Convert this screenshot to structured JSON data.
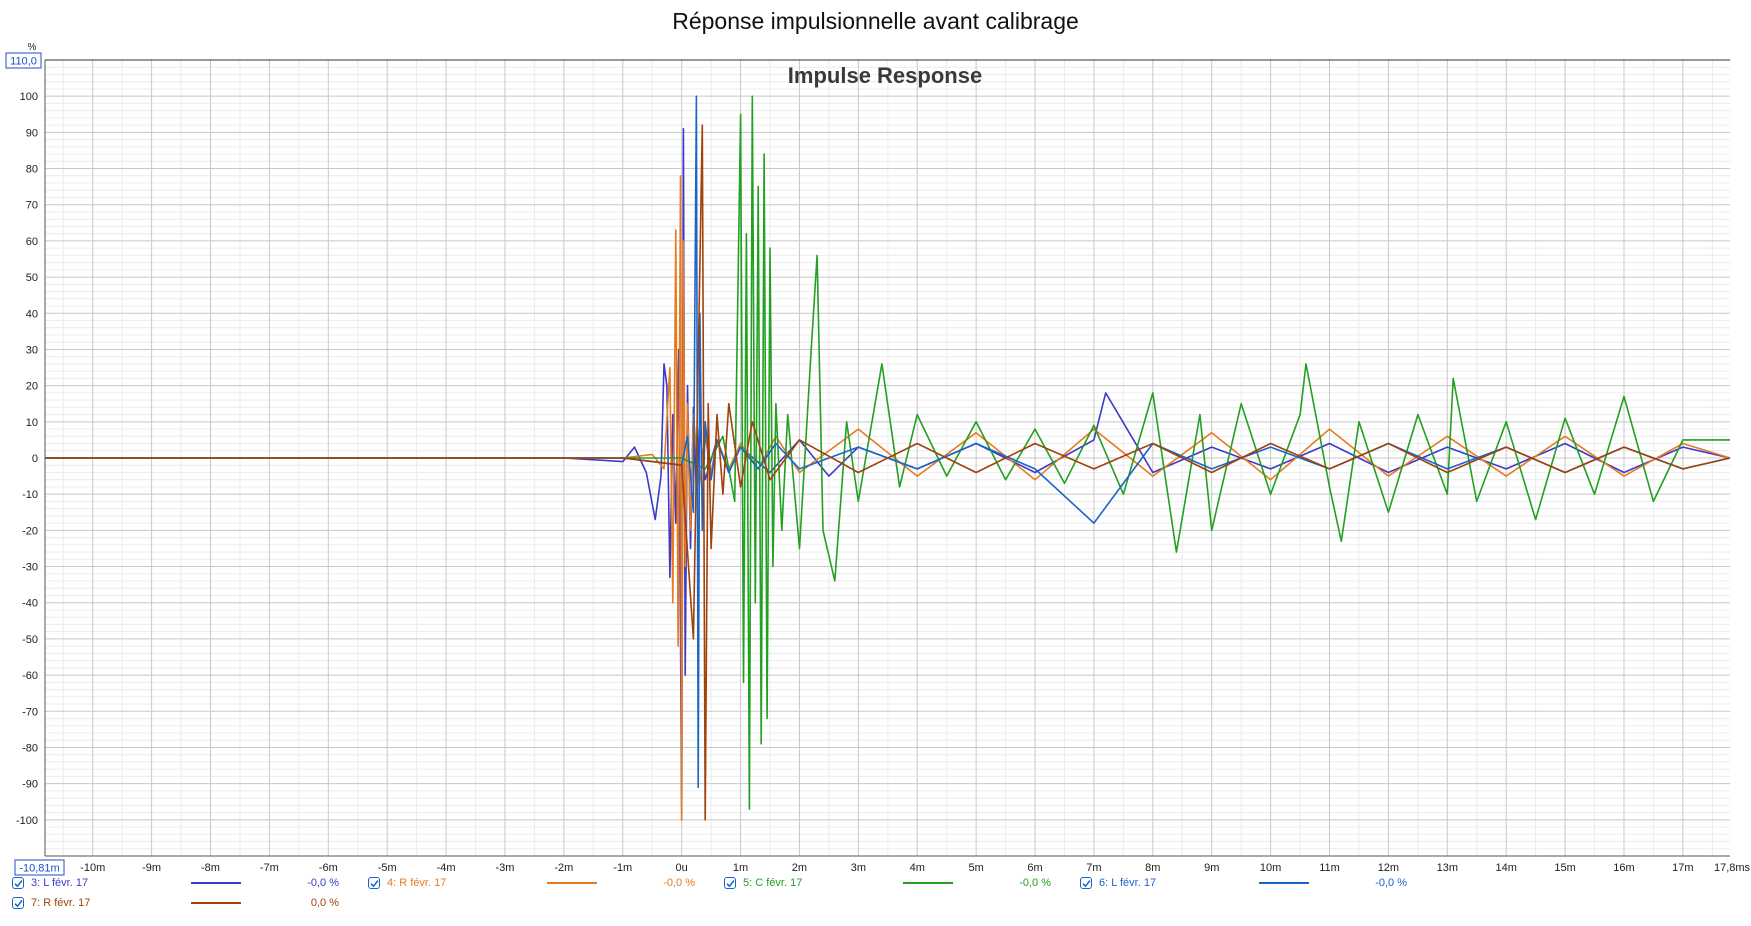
{
  "window": {
    "title": "Réponse impulsionnelle avant calibrage"
  },
  "chart_data": {
    "type": "line",
    "title": "Impulse Response",
    "xlabel": "",
    "ylabel": "",
    "y_unit": "%",
    "x_unit": "ms",
    "ylim": [
      -110,
      110
    ],
    "xlim": [
      -10.81,
      17.8
    ],
    "y_ticks": [
      100,
      90,
      80,
      70,
      60,
      50,
      40,
      30,
      20,
      10,
      0,
      -10,
      -20,
      -30,
      -40,
      -50,
      -60,
      -70,
      -80,
      -90,
      -100
    ],
    "x_ticks": [
      {
        "v": -10,
        "label": "-10m"
      },
      {
        "v": -9,
        "label": "-9m"
      },
      {
        "v": -8,
        "label": "-8m"
      },
      {
        "v": -7,
        "label": "-7m"
      },
      {
        "v": -6,
        "label": "-6m"
      },
      {
        "v": -5,
        "label": "-5m"
      },
      {
        "v": -4,
        "label": "-4m"
      },
      {
        "v": -3,
        "label": "-3m"
      },
      {
        "v": -2,
        "label": "-2m"
      },
      {
        "v": -1,
        "label": "-1m"
      },
      {
        "v": 0,
        "label": "0u"
      },
      {
        "v": 1,
        "label": "1m"
      },
      {
        "v": 2,
        "label": "2m"
      },
      {
        "v": 3,
        "label": "3m"
      },
      {
        "v": 4,
        "label": "4m"
      },
      {
        "v": 5,
        "label": "5m"
      },
      {
        "v": 6,
        "label": "6m"
      },
      {
        "v": 7,
        "label": "7m"
      },
      {
        "v": 8,
        "label": "8m"
      },
      {
        "v": 9,
        "label": "9m"
      },
      {
        "v": 10,
        "label": "10m"
      },
      {
        "v": 11,
        "label": "11m"
      },
      {
        "v": 12,
        "label": "12m"
      },
      {
        "v": 13,
        "label": "13m"
      },
      {
        "v": 14,
        "label": "14m"
      },
      {
        "v": 15,
        "label": "15m"
      },
      {
        "v": 16,
        "label": "16m"
      },
      {
        "v": 17,
        "label": "17m"
      }
    ],
    "y_top_box": "110,0",
    "x_left_box": "-10,81m",
    "x_right_label": "17,8ms",
    "grid": true,
    "legend_position": "bottom",
    "series": [
      {
        "name": "3: L févr. 17",
        "color": "#3b3bc8",
        "value": "-0,0 %",
        "checked": true,
        "x": [
          -10.81,
          -2.0,
          -1.0,
          -0.8,
          -0.6,
          -0.45,
          -0.35,
          -0.3,
          -0.25,
          -0.2,
          -0.15,
          -0.1,
          -0.05,
          0.0,
          0.03,
          0.06,
          0.1,
          0.15,
          0.2,
          0.25,
          0.3,
          0.4,
          0.6,
          0.8,
          1.0,
          1.5,
          2.0,
          2.5,
          3.0,
          4.0,
          5.0,
          6.0,
          7.0,
          7.2,
          8.0,
          9.0,
          10.0,
          11.0,
          12.0,
          13.0,
          14.0,
          15.0,
          16.0,
          17.0,
          17.8
        ],
        "y": [
          0,
          0,
          -1,
          3,
          -4,
          -17,
          -5,
          26,
          20,
          -33,
          12,
          -18,
          30,
          -100,
          91,
          -60,
          20,
          -25,
          14,
          -10,
          8,
          -6,
          5,
          -4,
          3,
          -4,
          5,
          -5,
          3,
          -3,
          4,
          -4,
          5,
          18,
          -4,
          3,
          -3,
          4,
          -4,
          3,
          -3,
          4,
          -4,
          3,
          0
        ]
      },
      {
        "name": "4: R févr. 17",
        "color": "#e87a1f",
        "value": "-0,0 %",
        "checked": true,
        "x": [
          -10.81,
          -2.0,
          -1.0,
          -0.5,
          -0.3,
          -0.2,
          -0.15,
          -0.1,
          -0.06,
          -0.02,
          0.0,
          0.03,
          0.06,
          0.1,
          0.15,
          0.2,
          0.3,
          0.4,
          0.5,
          0.6,
          0.8,
          1.0,
          1.3,
          1.6,
          2.0,
          3.0,
          4.0,
          5.0,
          6.0,
          7.0,
          8.0,
          9.0,
          10.0,
          11.0,
          12.0,
          13.0,
          14.0,
          15.0,
          16.0,
          17.0,
          17.8
        ],
        "y": [
          0,
          0,
          0,
          1,
          -3,
          25,
          -40,
          63,
          -52,
          78,
          -100,
          60,
          -30,
          15,
          -20,
          12,
          -8,
          6,
          -4,
          5,
          -3,
          4,
          -3,
          6,
          -4,
          8,
          -5,
          7,
          -6,
          8,
          -5,
          7,
          -6,
          8,
          -5,
          6,
          -5,
          6,
          -5,
          4,
          0
        ]
      },
      {
        "name": "5: C févr. 17",
        "color": "#22a022",
        "value": "-0,0 %",
        "checked": true,
        "x": [
          -10.81,
          -1.0,
          0.0,
          0.4,
          0.7,
          0.9,
          1.0,
          1.05,
          1.1,
          1.15,
          1.2,
          1.25,
          1.3,
          1.35,
          1.4,
          1.45,
          1.5,
          1.55,
          1.6,
          1.7,
          1.8,
          2.0,
          2.2,
          2.3,
          2.4,
          2.6,
          2.8,
          3.0,
          3.4,
          3.7,
          4.0,
          4.5,
          5.0,
          5.5,
          6.0,
          6.5,
          7.0,
          7.5,
          8.0,
          8.4,
          8.8,
          9.0,
          9.5,
          10.0,
          10.5,
          10.6,
          11.0,
          11.2,
          11.5,
          12.0,
          12.5,
          13.0,
          13.1,
          13.5,
          14.0,
          14.5,
          15.0,
          15.5,
          16.0,
          16.5,
          17.0,
          17.8
        ],
        "y": [
          0,
          0,
          0,
          -3,
          6,
          -12,
          95,
          -62,
          62,
          -97,
          100,
          -40,
          75,
          -79,
          84,
          -72,
          58,
          -30,
          15,
          -20,
          12,
          -25,
          30,
          56,
          -20,
          -34,
          10,
          -12,
          26,
          -8,
          12,
          -5,
          10,
          -6,
          8,
          -7,
          9,
          -10,
          18,
          -26,
          12,
          -20,
          15,
          -10,
          12,
          26,
          -8,
          -23,
          10,
          -15,
          12,
          -10,
          22,
          -12,
          10,
          -17,
          11,
          -10,
          17,
          -12,
          5,
          5
        ]
      },
      {
        "name": "6: L févr. 17",
        "color": "#1a66c8",
        "value": "-0,0 %",
        "checked": true,
        "x": [
          -10.81,
          -2.0,
          -1.0,
          0.0,
          0.1,
          0.2,
          0.25,
          0.28,
          0.31,
          0.35,
          0.4,
          0.5,
          0.6,
          0.8,
          1.0,
          1.3,
          1.6,
          2.0,
          3.0,
          4.0,
          5.0,
          6.0,
          7.0,
          8.0,
          9.0,
          10.0,
          11.0,
          12.0,
          13.0,
          14.0,
          15.0,
          16.0,
          17.0,
          17.8
        ],
        "y": [
          0,
          0,
          0,
          -2,
          6,
          -15,
          100,
          -91,
          40,
          -20,
          10,
          -6,
          5,
          -4,
          3,
          -3,
          4,
          -3,
          3,
          -3,
          4,
          -3,
          -18,
          4,
          -3,
          3,
          -3,
          4,
          -3,
          3,
          -4,
          3,
          -3,
          0
        ]
      },
      {
        "name": "7: R févr. 17",
        "color": "#a0420a",
        "value": "0,0 %",
        "checked": true,
        "x": [
          -10.81,
          -2.0,
          -1.0,
          0.0,
          0.2,
          0.35,
          0.4,
          0.45,
          0.5,
          0.6,
          0.7,
          0.8,
          1.0,
          1.2,
          1.5,
          2.0,
          3.0,
          4.0,
          5.0,
          6.0,
          7.0,
          8.0,
          9.0,
          10.0,
          11.0,
          12.0,
          13.0,
          14.0,
          15.0,
          16.0,
          17.0,
          17.8
        ],
        "y": [
          0,
          0,
          0,
          -2,
          -50,
          92,
          -100,
          15,
          -25,
          12,
          -10,
          15,
          -8,
          10,
          -6,
          5,
          -4,
          4,
          -4,
          4,
          -3,
          4,
          -4,
          4,
          -3,
          4,
          -4,
          3,
          -4,
          3,
          -3,
          0
        ]
      }
    ]
  }
}
